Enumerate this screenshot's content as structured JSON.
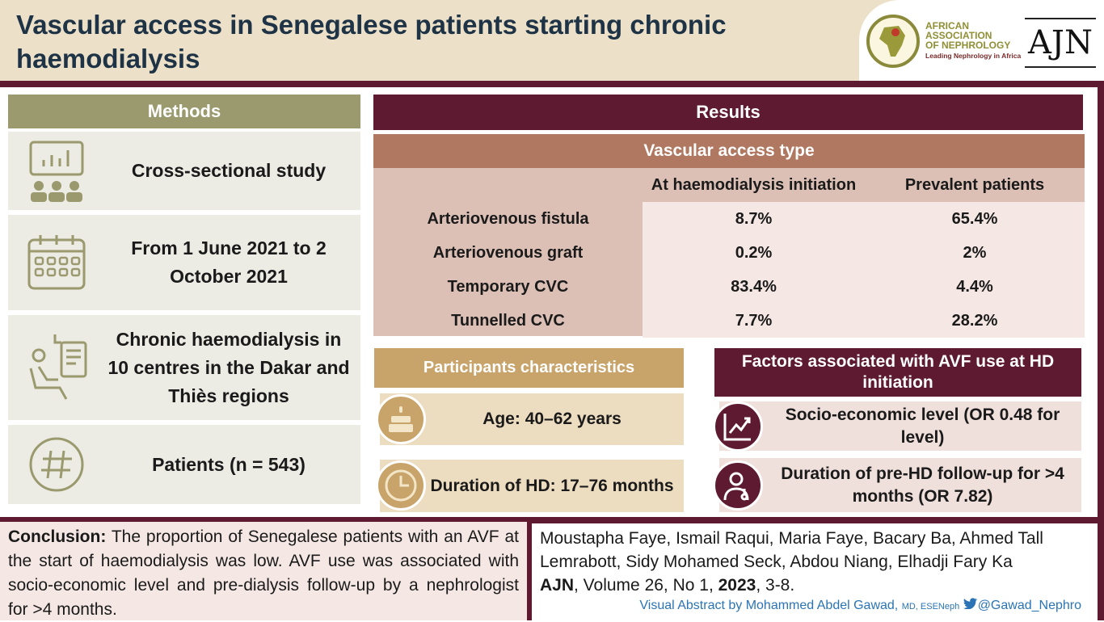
{
  "title": "Vascular access in Senegalese patients starting chronic haemodialysis",
  "logos": {
    "afran_lines": [
      "AFRICAN",
      "ASSOCIATION",
      "OF NEPHROLOGY"
    ],
    "afran_tagline": "Leading Nephrology in Africa",
    "afran_seal": "AFRAN",
    "ajn": "AJN"
  },
  "methods": {
    "heading": "Methods",
    "items": [
      {
        "icon": "presentation-audience-icon",
        "text": "Cross-sectional study"
      },
      {
        "icon": "calendar-icon",
        "text": "From 1 June 2021 to 2 October 2021"
      },
      {
        "icon": "dialysis-patient-icon",
        "text": "Chronic haemodialysis in 10 centres in the Dakar and Thiès regions"
      },
      {
        "icon": "hashtag-icon",
        "text": "Patients (n = 543)"
      }
    ]
  },
  "results": {
    "heading": "Results",
    "table": {
      "title": "Vascular access type",
      "columns": [
        "",
        "At haemodialysis initiation",
        "Prevalent patients"
      ],
      "rows": [
        [
          "Arteriovenous fistula",
          "8.7%",
          "65.4%"
        ],
        [
          "Arteriovenous graft",
          "0.2%",
          "2%"
        ],
        [
          "Temporary CVC",
          "83.4%",
          "4.4%"
        ],
        [
          "Tunnelled CVC",
          "7.7%",
          "28.2%"
        ]
      ]
    },
    "participants": {
      "heading": "Participants characteristics",
      "items": [
        {
          "icon": "cake-icon",
          "text": "Age: 40–62 years"
        },
        {
          "icon": "clock-icon",
          "text": "Duration of HD: 17–76 months"
        }
      ]
    },
    "factors": {
      "heading": "Factors associated with AVF use at HD initiation",
      "items": [
        {
          "icon": "trend-chart-icon",
          "text": "Socio-economic level (OR 0.48 for level)"
        },
        {
          "icon": "doctor-icon",
          "text": "Duration of pre-HD follow-up for >4 months (OR 7.82)"
        }
      ]
    }
  },
  "conclusion": {
    "label": "Conclusion:",
    "text": " The proportion of Senegalese patients with an AVF at the start of haemodialysis was low. AVF use was associated with socio-economic level and pre-dialysis follow-up by a nephrologist for >4 months."
  },
  "reference": {
    "authors": "Moustapha Faye, Ismail Raqui, Maria Faye, Bacary Ba, Ahmed Tall Lemrabott, Sidy Mohamed Seck, Abdou Niang, Elhadji Fary Ka",
    "journal": "AJN",
    "volume_text": ", Volume 26, No 1, ",
    "year": "2023",
    "pages": ", 3-8."
  },
  "credit": {
    "text": "Visual Abstract by Mohammed Abdel Gawad, ",
    "suffix": "MD, ESENeph",
    "handle": "@Gawad_Nephro"
  },
  "colors": {
    "maroon": "#5e1a30",
    "olive": "#9a9a6e",
    "gold": "#c8a46a",
    "terracotta": "#b07860",
    "twitter": "#2a74b6"
  }
}
